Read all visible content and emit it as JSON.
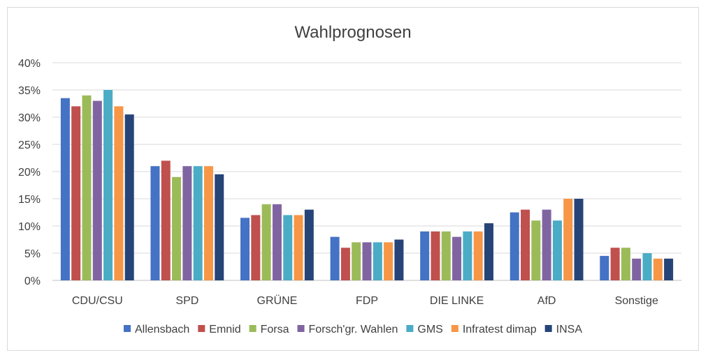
{
  "chart_data": {
    "type": "bar",
    "title": "Wahlprognosen",
    "xlabel": "",
    "ylabel": "",
    "ylim": [
      0,
      40
    ],
    "ytick_step": 5,
    "ytick_format": "percent",
    "grid": true,
    "legend_position": "bottom",
    "categories": [
      "CDU/CSU",
      "SPD",
      "GRÜNE",
      "FDP",
      "DIE LINKE",
      "AfD",
      "Sonstige"
    ],
    "series": [
      {
        "name": "Allensbach",
        "color": "#4472c4",
        "values": [
          33.5,
          21,
          11.5,
          8,
          9,
          12.5,
          4.5
        ]
      },
      {
        "name": "Emnid",
        "color": "#c0504d",
        "values": [
          32,
          22,
          12,
          6,
          9,
          13,
          6
        ]
      },
      {
        "name": "Forsa",
        "color": "#9bbb59",
        "values": [
          34,
          19,
          14,
          7,
          9,
          11,
          6
        ]
      },
      {
        "name": "Forsch'gr. Wahlen",
        "color": "#8064a2",
        "values": [
          33,
          21,
          14,
          7,
          8,
          13,
          4
        ]
      },
      {
        "name": "GMS",
        "color": "#4bacc6",
        "values": [
          35,
          21,
          12,
          7,
          9,
          11,
          5
        ]
      },
      {
        "name": "Infratest dimap",
        "color": "#f79646",
        "values": [
          32,
          21,
          12,
          7,
          9,
          15,
          4
        ]
      },
      {
        "name": "INSA",
        "color": "#264478",
        "values": [
          30.5,
          19.5,
          13,
          7.5,
          10.5,
          15,
          4
        ]
      }
    ]
  }
}
